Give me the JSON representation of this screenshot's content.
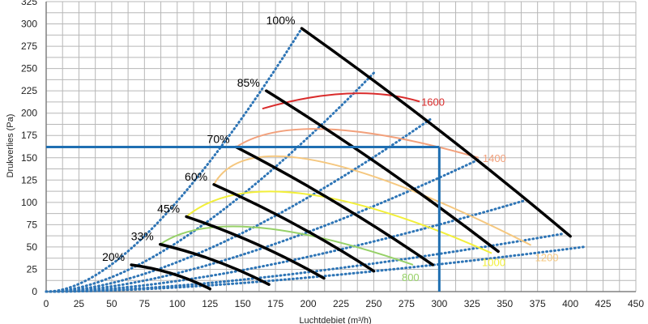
{
  "chart_data": {
    "type": "line",
    "xlabel": "Luchtdebiet (m³/h)",
    "ylabel": "Drukverlies (Pa)",
    "xlim": [
      0,
      450
    ],
    "ylim": [
      0,
      325
    ],
    "xticks": [
      "0",
      "25",
      "50",
      "75",
      "100",
      "125",
      "150",
      "175",
      "200",
      "225",
      "250",
      "275",
      "300",
      "325",
      "350",
      "375",
      "400",
      "425",
      "450"
    ],
    "yticks": [
      "0",
      "25",
      "50",
      "75",
      "100",
      "125",
      "150",
      "175",
      "200",
      "225",
      "250",
      "275",
      "300",
      "325"
    ],
    "grid": true,
    "colors": {
      "grid": "#b7b7b7",
      "axis": "#808080",
      "fan_curves": "#000000",
      "system_curves": "#2e75b6",
      "operating_point": "#1f6fb2",
      "rpm_1600": "#d92b2b",
      "rpm_1400": "#f2a07b",
      "rpm_1200": "#f5c77e",
      "rpm_1000": "#f2ef3a",
      "rpm_800": "#97d168"
    },
    "fan_curves": [
      {
        "label": "100%",
        "points": [
          [
            195,
            295
          ],
          [
            400,
            62
          ]
        ]
      },
      {
        "label": "85%",
        "points": [
          [
            168,
            225
          ],
          [
            345,
            45
          ]
        ]
      },
      {
        "label": "70%",
        "points": [
          [
            145,
            162
          ],
          [
            295,
            30
          ]
        ]
      },
      {
        "label": "60%",
        "points": [
          [
            128,
            120
          ],
          [
            250,
            23
          ]
        ]
      },
      {
        "label": "45%",
        "points": [
          [
            107,
            84
          ],
          [
            212,
            15
          ]
        ]
      },
      {
        "label": "33%",
        "points": [
          [
            87,
            53
          ],
          [
            170,
            8
          ]
        ]
      },
      {
        "label": "20%",
        "points": [
          [
            65,
            30
          ],
          [
            125,
            3
          ]
        ]
      }
    ],
    "system_curves": [
      {
        "points": [
          [
            0,
            0
          ],
          [
            195,
            295
          ]
        ]
      },
      {
        "points": [
          [
            0,
            0
          ],
          [
            250,
            245
          ]
        ]
      },
      {
        "points": [
          [
            0,
            0
          ],
          [
            295,
            195
          ]
        ]
      },
      {
        "points": [
          [
            0,
            0
          ],
          [
            330,
            148
          ]
        ]
      },
      {
        "points": [
          [
            0,
            0
          ],
          [
            365,
            102
          ]
        ]
      },
      {
        "points": [
          [
            0,
            0
          ],
          [
            395,
            65
          ]
        ]
      },
      {
        "points": [
          [
            0,
            0
          ],
          [
            410,
            50
          ]
        ]
      }
    ],
    "rpm_curves": [
      {
        "label": "1600",
        "points": [
          [
            165,
            205
          ],
          [
            230,
            222
          ],
          [
            285,
            213
          ]
        ]
      },
      {
        "label": "1400",
        "points": [
          [
            145,
            162
          ],
          [
            215,
            182
          ],
          [
            330,
            150
          ]
        ]
      },
      {
        "label": "1200",
        "points": [
          [
            128,
            120
          ],
          [
            205,
            147
          ],
          [
            370,
            52
          ]
        ]
      },
      {
        "label": "1000",
        "points": [
          [
            107,
            84
          ],
          [
            195,
            110
          ],
          [
            340,
            43
          ]
        ]
      },
      {
        "label": "800",
        "points": [
          [
            87,
            53
          ],
          [
            160,
            72
          ],
          [
            280,
            30
          ]
        ]
      }
    ],
    "operating_point": {
      "x": 300,
      "y": 162
    }
  }
}
